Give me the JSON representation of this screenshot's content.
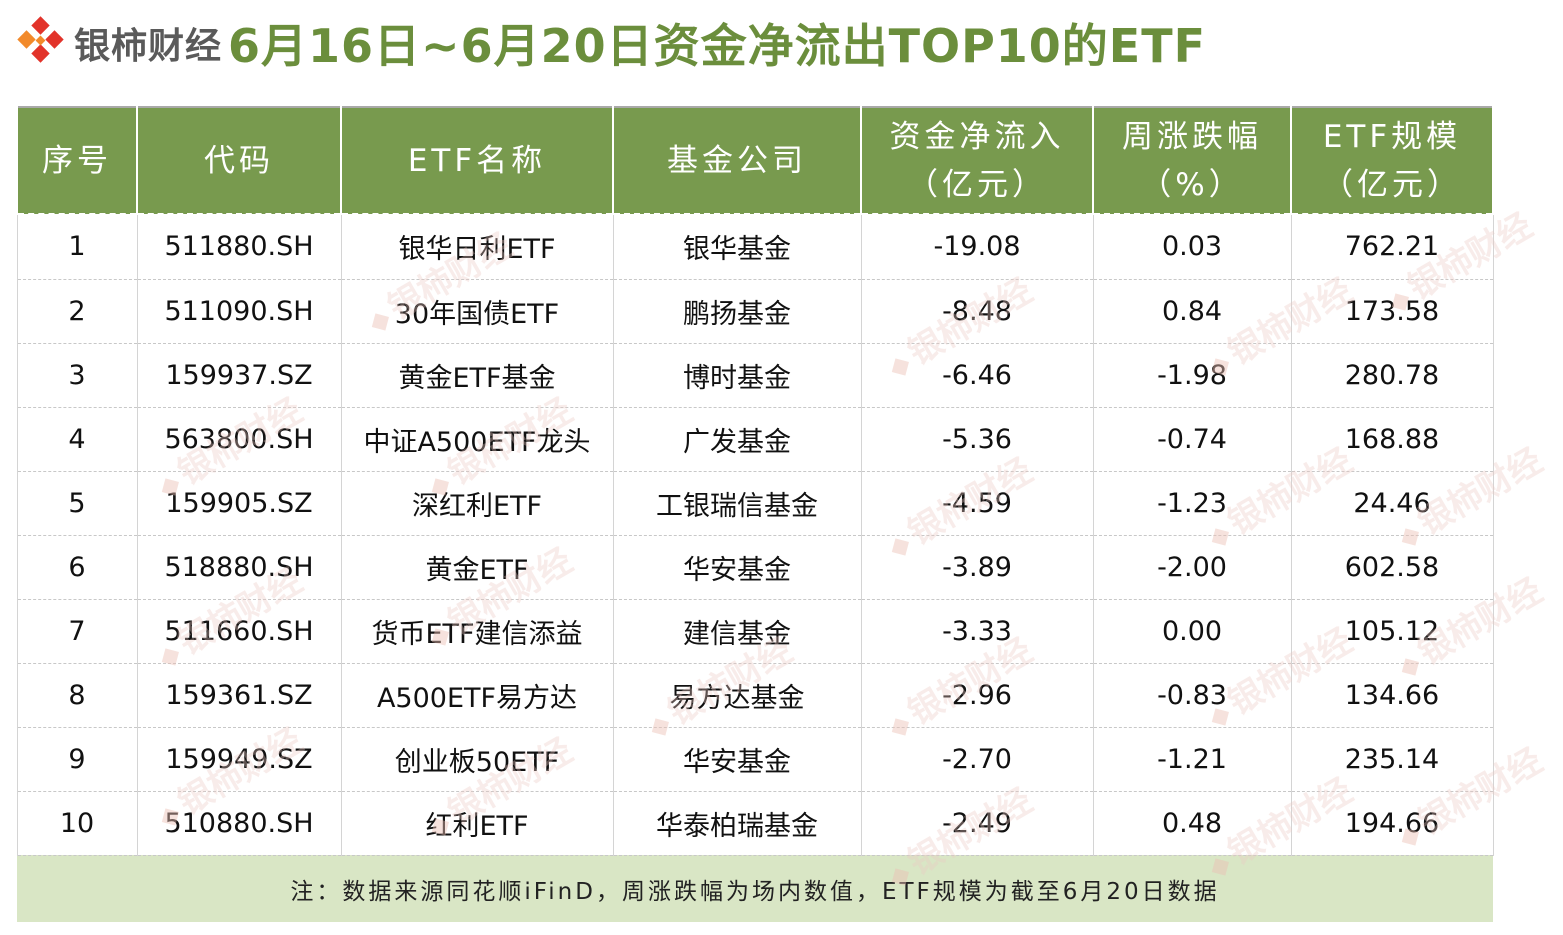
{
  "brand": "银柿财经",
  "title": "6月16日~6月20日资金净流出TOP10的ETF",
  "colors": {
    "header_bg": "#789a4e",
    "title_color": "#6b8e3c",
    "footer_bg": "#d9e6c5",
    "logo_red": "#e2332a",
    "logo_orange": "#f28a2b"
  },
  "table": {
    "headers": [
      {
        "line1": "序号",
        "line2": ""
      },
      {
        "line1": "代码",
        "line2": ""
      },
      {
        "line1": "ETF名称",
        "line2": ""
      },
      {
        "line1": "基金公司",
        "line2": ""
      },
      {
        "line1": "资金净流入",
        "line2": "（亿元）"
      },
      {
        "line1": "周涨跌幅",
        "line2": "（%）"
      },
      {
        "line1": "ETF规模",
        "line2": "（亿元）"
      }
    ],
    "rows": [
      [
        "1",
        "511880.SH",
        "银华日利ETF",
        "银华基金",
        "-19.08",
        "0.03",
        "762.21"
      ],
      [
        "2",
        "511090.SH",
        "30年国债ETF",
        "鹏扬基金",
        "-8.48",
        "0.84",
        "173.58"
      ],
      [
        "3",
        "159937.SZ",
        "黄金ETF基金",
        "博时基金",
        "-6.46",
        "-1.98",
        "280.78"
      ],
      [
        "4",
        "563800.SH",
        "中证A500ETF龙头",
        "广发基金",
        "-5.36",
        "-0.74",
        "168.88"
      ],
      [
        "5",
        "159905.SZ",
        "深红利ETF",
        "工银瑞信基金",
        "-4.59",
        "-1.23",
        "24.46"
      ],
      [
        "6",
        "518880.SH",
        "黄金ETF",
        "华安基金",
        "-3.89",
        "-2.00",
        "602.58"
      ],
      [
        "7",
        "511660.SH",
        "货币ETF建信添益",
        "建信基金",
        "-3.33",
        "0.00",
        "105.12"
      ],
      [
        "8",
        "159361.SZ",
        "A500ETF易方达",
        "易方达基金",
        "-2.96",
        "-0.83",
        "134.66"
      ],
      [
        "9",
        "159949.SZ",
        "创业板50ETF",
        "华安基金",
        "-2.70",
        "-1.21",
        "235.14"
      ],
      [
        "10",
        "510880.SH",
        "红利ETF",
        "华泰柏瑞基金",
        "-2.49",
        "0.48",
        "194.66"
      ]
    ],
    "footnote": "注：数据来源同花顺iFinD，周涨跌幅为场内数值，ETF规模为截至6月20日数据"
  },
  "watermark_text": "银柿财经"
}
